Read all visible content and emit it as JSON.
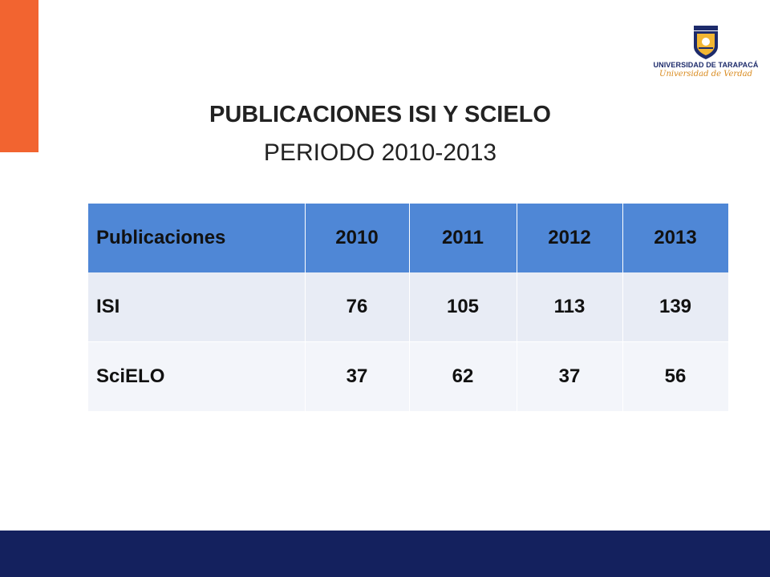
{
  "logo": {
    "name": "UNIVERSIDAD DE TARAPACÁ",
    "motto": "Universidad de Verdad",
    "colors": {
      "shield": "#1d2b6b",
      "sun": "#f2b632",
      "motto": "#d98a1e"
    }
  },
  "header": {
    "title": "PUBLICACIONES ISI Y SCIELO",
    "subtitle": "PERIODO 2010-2013"
  },
  "table": {
    "columns": [
      "Publicaciones",
      "2010",
      "2011",
      "2012",
      "2013"
    ],
    "rows": [
      [
        "ISI",
        "76",
        "105",
        "113",
        "139"
      ],
      [
        "SciELO",
        "37",
        "62",
        "37",
        "56"
      ]
    ]
  },
  "colors": {
    "accent": "#f26430",
    "footer": "#14215e",
    "table_header": "#4f87d6"
  }
}
